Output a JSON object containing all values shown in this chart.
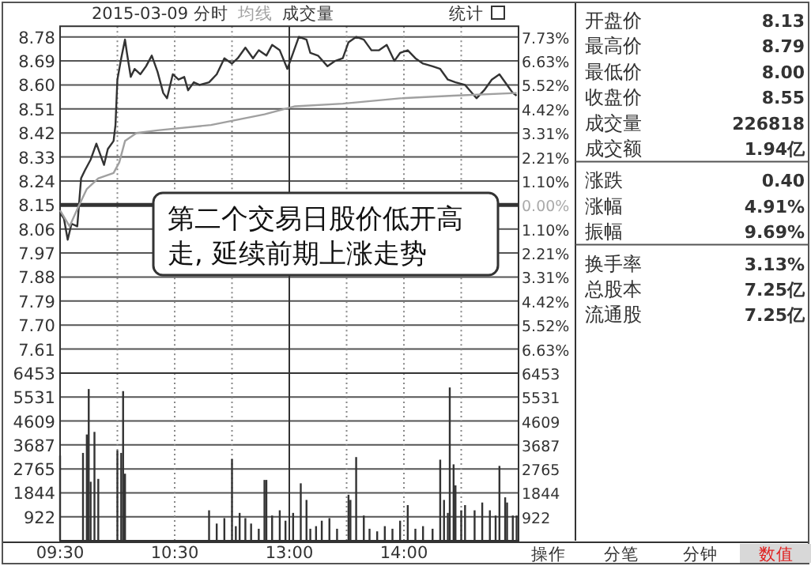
{
  "chart_data": [
    {
      "type": "line",
      "title": "2015-03-09 分时",
      "categories": [
        "09:30",
        null,
        null,
        null,
        null,
        null,
        null,
        null,
        null,
        null,
        null,
        null,
        null,
        null,
        null,
        null,
        null,
        null,
        null,
        null,
        null,
        null,
        null,
        null,
        null,
        null,
        null,
        null,
        null,
        null,
        null,
        null,
        null,
        null,
        null,
        null,
        null,
        null,
        null,
        null,
        null,
        null,
        null,
        null,
        null,
        null,
        null,
        null,
        null,
        null,
        null,
        null,
        null,
        null,
        null,
        null,
        null,
        null,
        null,
        null,
        "10:30",
        null,
        null,
        null,
        null,
        null,
        null,
        null,
        null,
        null,
        null,
        null,
        null,
        null,
        null,
        null,
        null,
        null,
        null,
        null,
        null,
        null,
        null,
        null,
        null,
        null,
        null,
        null,
        null,
        null,
        null,
        null,
        null,
        null,
        null,
        null,
        null,
        null,
        null,
        null,
        null,
        null,
        null,
        null,
        null,
        null,
        null,
        null,
        null,
        null,
        null,
        null,
        null,
        null,
        null,
        null,
        null,
        null,
        null,
        null,
        "13:00",
        null,
        null,
        null,
        null,
        null,
        null,
        null,
        null,
        null,
        null,
        null,
        null,
        null,
        null,
        null,
        null,
        null,
        null,
        null,
        null,
        null,
        null,
        null,
        null,
        null,
        null,
        null,
        null,
        null,
        null,
        null,
        null,
        null,
        null,
        null,
        null,
        null,
        null,
        null,
        null,
        null,
        null,
        null,
        null,
        null,
        null,
        null,
        null,
        null,
        null,
        null,
        null,
        null,
        null,
        null,
        null,
        null,
        null,
        null,
        "14:00",
        null,
        null,
        null,
        null,
        null,
        null,
        null,
        null,
        null,
        null,
        null,
        null,
        null,
        null,
        null,
        null,
        null,
        null,
        null,
        null,
        null,
        null,
        null,
        null,
        null,
        null,
        null,
        null,
        null,
        null,
        null,
        null,
        null,
        null,
        null,
        null,
        null,
        null,
        null,
        null,
        null,
        null,
        null,
        null,
        null,
        null,
        null,
        null,
        null,
        null,
        null,
        null,
        null,
        null,
        null,
        null,
        null,
        null,
        null,
        null
      ],
      "ylim": [
        7.52,
        8.82
      ],
      "yticks": [
        7.61,
        {
          "value": 7.7,
          "label": "7.70"
        },
        7.79,
        7.88,
        7.97,
        8.06,
        8.15,
        8.24,
        8.33,
        8.42,
        8.51,
        {
          "value": 8.6,
          "label": "8.60"
        },
        8.69,
        8.78
      ],
      "y2lim": [
        -7.73,
        8.22
      ],
      "y2ticks": [
        {
          "value": -6.63,
          "label": "6.63%"
        },
        {
          "value": -5.52,
          "label": "5.52%"
        },
        {
          "value": -4.42,
          "label": "4.42%"
        },
        {
          "value": -3.31,
          "label": "3.31%"
        },
        {
          "value": -2.21,
          "label": "2.21%"
        },
        {
          "value": -1.1,
          "label": "1.10%"
        },
        {
          "value": 0,
          "label": "0.00%"
        },
        {
          "value": 1.1,
          "label": "1.10%"
        },
        {
          "value": 2.21,
          "label": "2.21%"
        },
        {
          "value": 3.31,
          "label": "3.31%"
        },
        {
          "value": 4.42,
          "label": "4.42%"
        },
        {
          "value": 5.52,
          "label": "5.52%"
        },
        {
          "value": 6.63,
          "label": "6.63%"
        },
        {
          "value": 7.73,
          "label": "7.73%"
        }
      ],
      "tick_labels": "y",
      "grid": true,
      "legend": "top left",
      "ref_lines": [
        {
          "axis": "y",
          "value": 8.15,
          "color": "#333333"
        }
      ],
      "annotations": [
        "第二个交易日股价低开高走, 延续前期上涨走势",
        "成交量",
        "统计"
      ],
      "series": [
        {
          "color": "#333333",
          "values": [
            8.12,
            null,
            8.1,
            null,
            8.02,
            null,
            8.08,
            null,
            null,
            8.07,
            null,
            8.25,
            null,
            8.28,
            null,
            null,
            8.32,
            null,
            null,
            8.38,
            null,
            null,
            null,
            8.3,
            null,
            8.36,
            null,
            null,
            8.39,
            8.45,
            8.62,
            null,
            8.7,
            null,
            8.77,
            8.72,
            null,
            8.63,
            null,
            8.66,
            null,
            null,
            8.64,
            null,
            null,
            8.67,
            null,
            null,
            8.71,
            null,
            null,
            8.65,
            null,
            null,
            8.57,
            null,
            8.55,
            null,
            null,
            8.64,
            null,
            null,
            8.62,
            null,
            null,
            8.63,
            null,
            8.58,
            null,
            null,
            8.61,
            null,
            null,
            8.6,
            null,
            null,
            null,
            null,
            8.61,
            null,
            null,
            null,
            8.64,
            null,
            null,
            null,
            8.7,
            null,
            null,
            null,
            8.68,
            null,
            null,
            8.7,
            null,
            null,
            null,
            8.74,
            null,
            null,
            null,
            8.7,
            null,
            null,
            8.73,
            null,
            null,
            null,
            8.71,
            null,
            null,
            8.75,
            null,
            null,
            null,
            8.73,
            null,
            null,
            null,
            8.66,
            null,
            null,
            8.72,
            null,
            null,
            8.78,
            null,
            null,
            null,
            8.77,
            null,
            8.72,
            null,
            null,
            null,
            8.71,
            null,
            null,
            null,
            null,
            8.67,
            null,
            null,
            null,
            8.69,
            null,
            null,
            null,
            8.7,
            null,
            null,
            8.76,
            null,
            null,
            null,
            8.78,
            null,
            null,
            null,
            8.77,
            null,
            null,
            null,
            8.73,
            null,
            null,
            null,
            8.73,
            null,
            null,
            null,
            8.75,
            null,
            null,
            null,
            8.69,
            null,
            null,
            8.72,
            null,
            null,
            null,
            8.73,
            null,
            null,
            null,
            8.7,
            null,
            null,
            null,
            8.68,
            null,
            null,
            null,
            null,
            8.67,
            null,
            null,
            null,
            8.66,
            null,
            null,
            null,
            8.62,
            null,
            null,
            null,
            8.61,
            null,
            null,
            null,
            null,
            8.6,
            null,
            null,
            null,
            null,
            null,
            8.55,
            null,
            null,
            null,
            8.58,
            null,
            null,
            null,
            8.62,
            null,
            null,
            null,
            8.64,
            null,
            null,
            null,
            8.6,
            null,
            null,
            8.57,
            null,
            8.56,
            null
          ]
        },
        {
          "name": "均线",
          "color": "#a0a0a0",
          "values": [
            8.13,
            null,
            null,
            null,
            null,
            8.07,
            null,
            null,
            null,
            null,
            8.15,
            null,
            null,
            null,
            8.21,
            null,
            null,
            null,
            null,
            null,
            8.25,
            null,
            null,
            null,
            null,
            null,
            null,
            null,
            8.27,
            null,
            null,
            8.31,
            null,
            null,
            8.39,
            null,
            null,
            null,
            null,
            null,
            8.42,
            null,
            null,
            null,
            null,
            null,
            null,
            null,
            null,
            null,
            null,
            8.43,
            null,
            null,
            null,
            null,
            null,
            null,
            null,
            null,
            null,
            null,
            null,
            null,
            null,
            null,
            null,
            null,
            null,
            null,
            null,
            null,
            null,
            null,
            null,
            null,
            null,
            null,
            null,
            8.45,
            null,
            null,
            null,
            null,
            null,
            null,
            null,
            null,
            null,
            null,
            null,
            null,
            null,
            null,
            null,
            null,
            null,
            null,
            null,
            null,
            null,
            null,
            null,
            null,
            null,
            null,
            null,
            8.49,
            null,
            null,
            null,
            null,
            null,
            null,
            null,
            null,
            null,
            null,
            null,
            null,
            null,
            null,
            null,
            8.52,
            null,
            null,
            null,
            null,
            null,
            null,
            null,
            null,
            null,
            null,
            null,
            null,
            null,
            null,
            null,
            null,
            null,
            null,
            null,
            null,
            null,
            null,
            null,
            null,
            8.53,
            null,
            null,
            null,
            null,
            null,
            null,
            null,
            null,
            null,
            null,
            null,
            null,
            null,
            null,
            null,
            null,
            null,
            null,
            null,
            null,
            null,
            null,
            null,
            null,
            null,
            null,
            null,
            null,
            null,
            8.55,
            null,
            null,
            null,
            null,
            null,
            null,
            null,
            null,
            null,
            null,
            null,
            null,
            null,
            null,
            null,
            null,
            null,
            null,
            null,
            null,
            null,
            null,
            null,
            null,
            null,
            null,
            null,
            8.56,
            null,
            null,
            null,
            null,
            null,
            null,
            null,
            null,
            null,
            null,
            null,
            null,
            null,
            null,
            null,
            null,
            null,
            null,
            null,
            null,
            null,
            null,
            null,
            null,
            null,
            null,
            null,
            null,
            null,
            null,
            null,
            null,
            8.57,
            null
          ]
        }
      ]
    },
    {
      "type": "bar",
      "color": "#333333",
      "categories": [
        "09:30",
        null,
        null,
        null,
        null,
        null,
        null,
        null,
        null,
        null,
        null,
        null,
        null,
        null,
        null,
        null,
        null,
        null,
        null,
        null,
        null,
        null,
        null,
        null,
        null,
        null,
        null,
        null,
        null,
        null,
        null,
        null,
        null,
        null,
        null,
        null,
        null,
        null,
        null,
        null,
        null,
        null,
        null,
        null,
        null,
        null,
        null,
        null,
        null,
        null,
        null,
        null,
        null,
        null,
        null,
        null,
        null,
        null,
        null,
        null,
        "10:30",
        null,
        null,
        null,
        null,
        null,
        null,
        null,
        null,
        null,
        null,
        null,
        null,
        null,
        null,
        null,
        null,
        null,
        null,
        null,
        null,
        null,
        null,
        null,
        null,
        null,
        null,
        null,
        null,
        null,
        null,
        null,
        null,
        null,
        null,
        null,
        null,
        null,
        null,
        null,
        null,
        null,
        null,
        null,
        null,
        null,
        null,
        null,
        null,
        null,
        null,
        null,
        null,
        null,
        null,
        null,
        null,
        null,
        null,
        null,
        "13:00",
        null,
        null,
        null,
        null,
        null,
        null,
        null,
        null,
        null,
        null,
        null,
        null,
        null,
        null,
        null,
        null,
        null,
        null,
        null,
        null,
        null,
        null,
        null,
        null,
        null,
        null,
        null,
        null,
        null,
        null,
        null,
        null,
        null,
        null,
        null,
        null,
        null,
        null,
        null,
        null,
        null,
        null,
        null,
        null,
        null,
        null,
        null,
        null,
        null,
        null,
        null,
        null,
        null,
        null,
        null,
        null,
        null,
        null,
        null,
        "14:00",
        null,
        null,
        null,
        null,
        null,
        null,
        null,
        null,
        null,
        null,
        null,
        null,
        null,
        null,
        null,
        null,
        null,
        null,
        null,
        null,
        null,
        null,
        null,
        null,
        null,
        null,
        null,
        null,
        null,
        null,
        null,
        null,
        null,
        null,
        null,
        null,
        null,
        null,
        null,
        null,
        null,
        null,
        null,
        null,
        null,
        null,
        null,
        null,
        null,
        null,
        null,
        null,
        null,
        null,
        null,
        null,
        null,
        null,
        null,
        null
      ],
      "ylim": [
        0,
        6453
      ],
      "yticks": [
        922,
        1844,
        2765,
        3687,
        4609,
        5531,
        6453
      ],
      "y2lim": [
        0,
        6453
      ],
      "y2ticks": [
        922,
        1844,
        2765,
        3687,
        4609,
        5531,
        6453
      ],
      "grid": true,
      "values": [
        3280,
        null,
        null,
        null,
        null,
        null,
        null,
        null,
        null,
        null,
        null,
        null,
        3380,
        null,
        4090,
        5840,
        2270,
        null,
        4190,
        null,
        2380,
        null,
        null,
        null,
        null,
        null,
        null,
        null,
        null,
        null,
        3480,
        null,
        3380,
        5760,
        2580,
        null,
        null,
        null,
        null,
        null,
        null,
        null,
        null,
        null,
        null,
        null,
        null,
        null,
        null,
        null,
        null,
        null,
        null,
        null,
        null,
        null,
        null,
        null,
        null,
        null,
        null,
        null,
        null,
        null,
        null,
        null,
        null,
        null,
        null,
        null,
        null,
        null,
        null,
        null,
        null,
        null,
        null,
        null,
        1170,
        null,
        null,
        null,
        660,
        null,
        null,
        null,
        870,
        null,
        null,
        null,
        3140,
        null,
        560,
        null,
        1070,
        null,
        null,
        870,
        null,
        null,
        660,
        null,
        null,
        null,
        460,
        null,
        null,
        2340,
        2340,
        null,
        null,
        970,
        null,
        null,
        null,
        1170,
        null,
        null,
        770,
        null,
        null,
        null,
        1070,
        null,
        null,
        null,
        2210,
        null,
        null,
        1570,
        null,
        460,
        null,
        null,
        560,
        null,
        null,
        770,
        null,
        null,
        null,
        870,
        null,
        null,
        null,
        460,
        null,
        null,
        null,
        null,
        null,
        1770,
        1570,
        null,
        null,
        3220,
        null,
        null,
        null,
        970,
        null,
        null,
        460,
        null,
        null,
        null,
        360,
        null,
        null,
        null,
        560,
        null,
        null,
        null,
        460,
        null,
        null,
        null,
        770,
        null,
        null,
        null,
        1370,
        null,
        null,
        null,
        460,
        null,
        null,
        null,
        560,
        null,
        null,
        null,
        null,
        460,
        null,
        null,
        null,
        3120,
        null,
        1570,
        null,
        1070,
        5900,
        null,
        2940,
        2130,
        null,
        null,
        1170,
        null,
        1370,
        null,
        null,
        null,
        null,
        1170,
        null,
        null,
        null,
        1470,
        null,
        null,
        null,
        1170,
        null,
        null,
        970,
        null,
        2880,
        null,
        null,
        1670,
        1470,
        null,
        null,
        970,
        null,
        970,
        null
      ]
    },
    {
      "type": "other",
      "categories": [
        "开盘价",
        "最高价",
        "最低价",
        "收盘价",
        "成交量",
        "成交额",
        "涨跌",
        "涨幅",
        "振幅",
        "换手率",
        "总股本",
        "流通股"
      ],
      "annotations": [
        "8.13",
        "8.79",
        "8.00",
        "8.55",
        "226818",
        "1.94亿",
        "0.40",
        "4.91%",
        "9.69%",
        "3.13%",
        "7.25亿",
        "7.25亿",
        "操作",
        "分笔",
        "分钟",
        "数值"
      ]
    }
  ]
}
